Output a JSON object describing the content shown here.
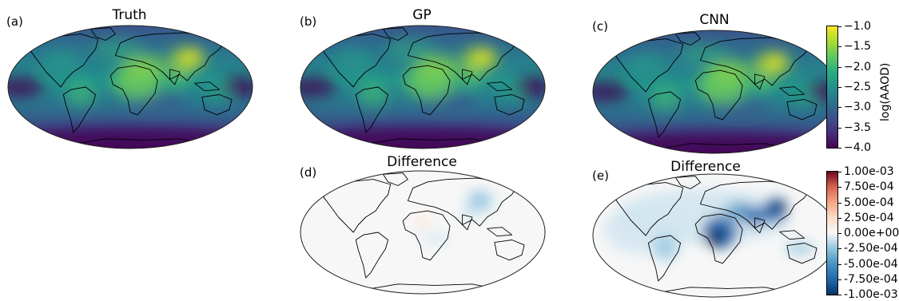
{
  "panels": [
    {
      "label": "(a)",
      "title": "Truth",
      "kind": "field"
    },
    {
      "label": "(b)",
      "title": "GP",
      "kind": "field"
    },
    {
      "label": "(c)",
      "title": "CNN",
      "kind": "field"
    },
    {
      "label": "(d)",
      "title": "Difference",
      "kind": "diff_small"
    },
    {
      "label": "(e)",
      "title": "Difference",
      "kind": "diff_large"
    }
  ],
  "colorbar_top": {
    "label": "log(AAOD)",
    "colormap": "viridis",
    "range": [
      -4.0,
      -1.0
    ],
    "ticks": [
      "−1.0",
      "−1.5",
      "−2.0",
      "−2.5",
      "−3.0",
      "−3.5",
      "−4.0"
    ]
  },
  "colorbar_bottom": {
    "colormap": "RdBu_r",
    "range": [
      -0.001,
      0.001
    ],
    "ticks": [
      "1.00e-03",
      "7.50e-04",
      "5.00e-04",
      "2.50e-04",
      "0.00e+00",
      "-2.50e-04",
      "-5.00e-04",
      "-7.50e-04",
      "-1.00e-03"
    ]
  }
}
